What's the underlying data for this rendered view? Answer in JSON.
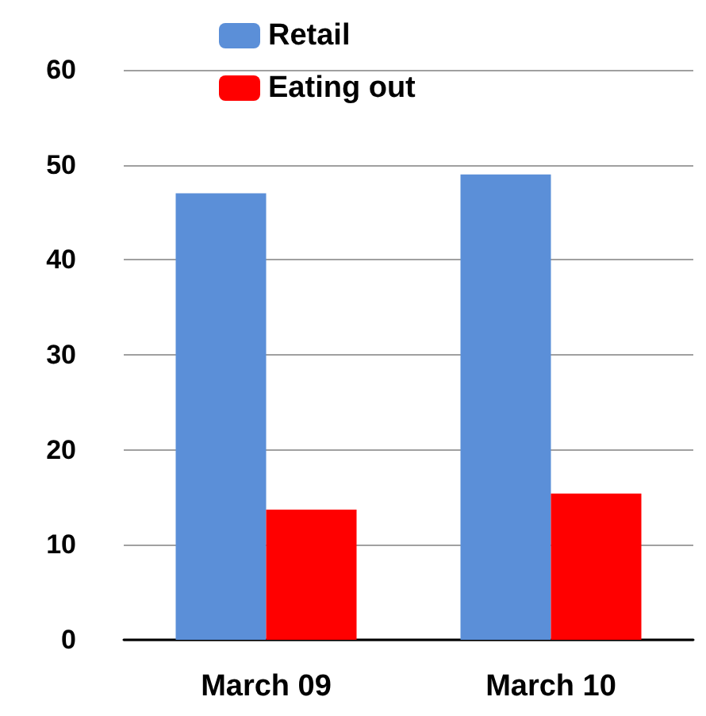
{
  "chart_data": {
    "type": "bar",
    "categories": [
      "March 09",
      "March 10"
    ],
    "series": [
      {
        "name": "Retail",
        "color": "#5b8fd8",
        "values": [
          47,
          49
        ]
      },
      {
        "name": "Eating out",
        "color": "#ff0000",
        "values": [
          13.7,
          15.4
        ]
      }
    ],
    "ylim": [
      0,
      60
    ],
    "yticks": [
      0,
      10,
      20,
      30,
      40,
      50,
      60
    ],
    "grid": "y",
    "legend": "top"
  }
}
